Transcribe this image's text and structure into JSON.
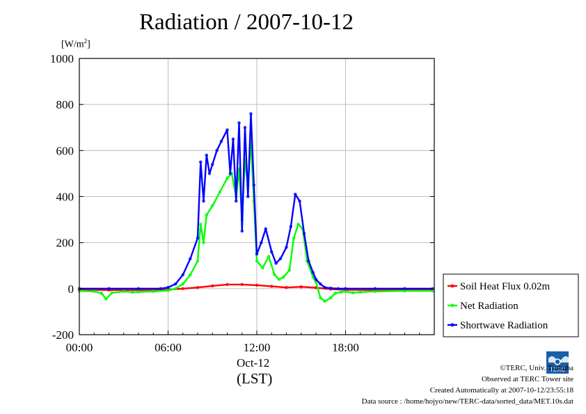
{
  "chart_data": {
    "type": "line",
    "title": "Radiation / 2007-10-12",
    "ylabel_unit": "W/m",
    "ylabel_sup": "2",
    "ylim": [
      -200,
      1000
    ],
    "yticks": [
      -200,
      0,
      200,
      400,
      600,
      800,
      1000
    ],
    "ytick_labels": [
      "-200",
      "0",
      "200",
      "400",
      "600",
      "800",
      "1000"
    ],
    "xlim_hours": [
      0,
      24
    ],
    "xticks_hours": [
      0,
      6,
      12,
      18
    ],
    "xtick_labels": [
      "00:00",
      "06:00",
      "12:00",
      "18:00"
    ],
    "xlabel_date": "Oct-12",
    "xlabel": "(LST)",
    "grid": true,
    "legend_position": "bottom-right",
    "series": [
      {
        "name": "Soil Heat Flux 0.02m",
        "color": "#ff0000",
        "x": [
          0,
          2,
          4,
          6,
          7,
          8,
          9,
          10,
          11,
          12,
          13,
          14,
          15,
          16,
          17,
          18,
          20,
          22,
          23.9
        ],
        "y": [
          -5,
          -6,
          -6,
          -4,
          0,
          5,
          12,
          18,
          18,
          15,
          10,
          5,
          8,
          4,
          -2,
          -5,
          -6,
          -6,
          -7
        ]
      },
      {
        "name": "Net Radiation",
        "color": "#00ff00",
        "x": [
          0,
          1,
          1.5,
          1.8,
          2.2,
          3,
          3.6,
          4,
          5,
          6,
          6.5,
          7,
          7.5,
          8,
          8.2,
          8.4,
          8.6,
          9,
          9.5,
          10,
          10.3,
          10.6,
          10.8,
          11,
          11.2,
          11.4,
          11.6,
          11.8,
          12,
          12.4,
          12.8,
          13.2,
          13.5,
          13.8,
          14.2,
          14.5,
          14.8,
          15.1,
          15.4,
          15.8,
          16,
          16.3,
          16.6,
          17,
          17.3,
          17.7,
          18,
          18.5,
          19,
          20,
          22,
          23.9
        ],
        "y": [
          -10,
          -12,
          -20,
          -45,
          -18,
          -12,
          -16,
          -14,
          -12,
          -8,
          0,
          20,
          60,
          120,
          280,
          200,
          320,
          360,
          420,
          480,
          500,
          400,
          520,
          300,
          560,
          450,
          640,
          380,
          120,
          90,
          140,
          60,
          40,
          50,
          80,
          220,
          280,
          260,
          120,
          50,
          30,
          -40,
          -55,
          -40,
          -20,
          -15,
          -12,
          -18,
          -15,
          -12,
          -10,
          -10
        ]
      },
      {
        "name": "Shortwave Radiation",
        "color": "#0000ff",
        "x": [
          0,
          2,
          4,
          5.5,
          6,
          6.5,
          7,
          7.5,
          8,
          8.2,
          8.4,
          8.6,
          8.8,
          9,
          9.3,
          9.6,
          10,
          10.2,
          10.4,
          10.6,
          10.8,
          11,
          11.2,
          11.4,
          11.6,
          11.8,
          12,
          12.3,
          12.6,
          13,
          13.3,
          13.6,
          14,
          14.3,
          14.6,
          14.9,
          15.2,
          15.5,
          15.8,
          16,
          16.3,
          16.6,
          17,
          17.5,
          18,
          20,
          22,
          23.9
        ],
        "y": [
          0,
          0,
          0,
          0,
          5,
          20,
          60,
          130,
          220,
          550,
          380,
          580,
          500,
          540,
          600,
          640,
          690,
          500,
          650,
          380,
          720,
          250,
          700,
          400,
          760,
          450,
          150,
          200,
          260,
          160,
          110,
          130,
          180,
          270,
          410,
          380,
          240,
          120,
          70,
          40,
          20,
          5,
          2,
          0,
          0,
          0,
          0,
          0
        ]
      }
    ]
  },
  "footer": {
    "copyright": "©TERC, Univ. Tsukuba",
    "observed": "Observed at TERC Tower site",
    "created": "Created Automatically at 2007-10-12/23:55:18",
    "source": "Data source : /home/hojyo/new/TERC-data/sorted_data/MET.10s.dat"
  },
  "logo": {
    "text": "TERC"
  }
}
